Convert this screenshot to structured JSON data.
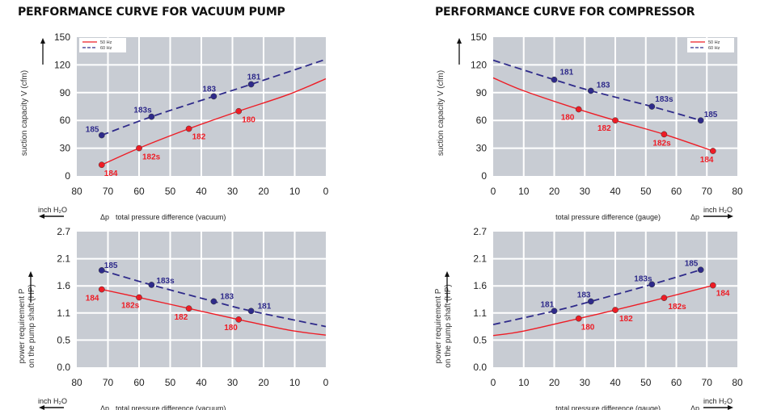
{
  "titles": [
    "PERFORMANCE CURVE FOR VACUUM PUMP",
    "PERFORMANCE CURVE FOR COMPRESSOR"
  ],
  "colors": {
    "hz50": "#ee1c25",
    "hz60": "#2e2a8a",
    "plot_bg": "#c8ccd3",
    "grid": "#ffffff"
  },
  "chart_data": [
    {
      "type": "line",
      "title": "PERFORMANCE CURVE FOR VACUUM PUMP",
      "ylabel": "suction capacity V (cfm)",
      "xlabel": "total pressure difference (vacuum)",
      "xlabel_prefix": "Δp",
      "unit": "inch H2O",
      "xlim": [
        80,
        0
      ],
      "ylim": [
        0,
        150
      ],
      "xticks": [
        "80",
        "70",
        "60",
        "50",
        "40",
        "30",
        "20",
        "10",
        "0"
      ],
      "yticks": [
        "0",
        "30",
        "60",
        "90",
        "120",
        "150"
      ],
      "grid": true,
      "legend": "top-left",
      "series": [
        {
          "name": "50 Hz",
          "style": "solid",
          "curve": [
            [
              72,
              12
            ],
            [
              60,
              30
            ],
            [
              44,
              51
            ],
            [
              28,
              70
            ],
            [
              12,
              88
            ],
            [
              0,
              105
            ]
          ],
          "markers": [
            {
              "x": 72,
              "y": 12,
              "label": "184"
            },
            {
              "x": 60,
              "y": 30,
              "label": "182s"
            },
            {
              "x": 44,
              "y": 51,
              "label": "182"
            },
            {
              "x": 28,
              "y": 70,
              "label": "180"
            }
          ]
        },
        {
          "name": "60 Hz",
          "style": "dashed",
          "curve": [
            [
              72,
              44
            ],
            [
              56,
              64
            ],
            [
              36,
              86
            ],
            [
              24,
              99
            ],
            [
              0,
              126
            ]
          ],
          "markers": [
            {
              "x": 72,
              "y": 44,
              "label": "185"
            },
            {
              "x": 56,
              "y": 64,
              "label": "183s"
            },
            {
              "x": 36,
              "y": 86,
              "label": "183"
            },
            {
              "x": 24,
              "y": 99,
              "label": "181"
            }
          ]
        }
      ]
    },
    {
      "type": "line",
      "ylabel": "power requirement P on the pump shaft (HP)",
      "ylabel_lines": [
        "power requirement P",
        "on the pump shaft (HP)"
      ],
      "xlabel": "total pressure difference (vacuum)",
      "xlabel_prefix": "Δp",
      "unit": "inch H2O",
      "xlim": [
        80,
        0
      ],
      "ylim": [
        0,
        2.7
      ],
      "xticks": [
        "80",
        "70",
        "60",
        "50",
        "40",
        "30",
        "20",
        "10",
        "0"
      ],
      "yticks": [
        "0.0",
        "0.5",
        "1.1",
        "1.6",
        "2.1",
        "2.7"
      ],
      "grid": true,
      "series": [
        {
          "name": "50 Hz",
          "style": "solid",
          "curve": [
            [
              72,
              1.55
            ],
            [
              60,
              1.39
            ],
            [
              44,
              1.17
            ],
            [
              28,
              0.95
            ],
            [
              12,
              0.74
            ],
            [
              0,
              0.64
            ]
          ],
          "markers": [
            {
              "x": 72,
              "y": 1.55,
              "label": "184"
            },
            {
              "x": 60,
              "y": 1.39,
              "label": "182s"
            },
            {
              "x": 44,
              "y": 1.17,
              "label": "182"
            },
            {
              "x": 28,
              "y": 0.95,
              "label": "180"
            }
          ]
        },
        {
          "name": "60 Hz",
          "style": "dashed",
          "curve": [
            [
              72,
              1.93
            ],
            [
              56,
              1.64
            ],
            [
              36,
              1.31
            ],
            [
              24,
              1.12
            ],
            [
              0,
              0.81
            ]
          ],
          "markers": [
            {
              "x": 72,
              "y": 1.93,
              "label": "185"
            },
            {
              "x": 56,
              "y": 1.64,
              "label": "183s"
            },
            {
              "x": 36,
              "y": 1.31,
              "label": "183"
            },
            {
              "x": 24,
              "y": 1.12,
              "label": "181"
            }
          ]
        }
      ]
    },
    {
      "type": "line",
      "title": "PERFORMANCE CURVE FOR COMPRESSOR",
      "ylabel": "suction capacity V (cfm)",
      "xlabel": "total pressure difference (gauge)",
      "xlabel_prefix": "Δp",
      "unit": "inch H2O",
      "xlim": [
        0,
        80
      ],
      "ylim": [
        0,
        150
      ],
      "xticks": [
        "0",
        "10",
        "20",
        "30",
        "40",
        "50",
        "60",
        "70",
        "80"
      ],
      "yticks": [
        "0",
        "30",
        "60",
        "90",
        "120",
        "150"
      ],
      "grid": true,
      "legend": "top-right",
      "series": [
        {
          "name": "50 Hz",
          "style": "solid",
          "curve": [
            [
              0,
              106
            ],
            [
              10,
              92
            ],
            [
              28,
              72
            ],
            [
              40,
              60
            ],
            [
              56,
              45
            ],
            [
              72,
              27
            ]
          ],
          "markers": [
            {
              "x": 28,
              "y": 72,
              "label": "180"
            },
            {
              "x": 40,
              "y": 60,
              "label": "182"
            },
            {
              "x": 56,
              "y": 45,
              "label": "182s"
            },
            {
              "x": 72,
              "y": 27,
              "label": "184"
            }
          ]
        },
        {
          "name": "60 Hz",
          "style": "dashed",
          "curve": [
            [
              0,
              125
            ],
            [
              20,
              104
            ],
            [
              32,
              92
            ],
            [
              52,
              75
            ],
            [
              68,
              60
            ]
          ],
          "markers": [
            {
              "x": 20,
              "y": 104,
              "label": "181"
            },
            {
              "x": 32,
              "y": 92,
              "label": "183"
            },
            {
              "x": 52,
              "y": 75,
              "label": "183s"
            },
            {
              "x": 68,
              "y": 60,
              "label": "185"
            }
          ]
        }
      ]
    },
    {
      "type": "line",
      "ylabel": "power requirement P on the pump shaft (HP)",
      "ylabel_lines": [
        "power requirement P",
        "on the pump shaft (HP)"
      ],
      "xlabel": "total pressure difference (gauge)",
      "xlabel_prefix": "Δp",
      "unit": "inch H2O",
      "xlim": [
        0,
        80
      ],
      "ylim": [
        0,
        2.7
      ],
      "xticks": [
        "0",
        "10",
        "20",
        "30",
        "40",
        "50",
        "60",
        "70",
        "80"
      ],
      "yticks": [
        "0.0",
        "0.5",
        "1.1",
        "1.6",
        "2.1",
        "2.7"
      ],
      "grid": true,
      "series": [
        {
          "name": "50 Hz",
          "style": "solid",
          "curve": [
            [
              0,
              0.63
            ],
            [
              10,
              0.72
            ],
            [
              28,
              0.97
            ],
            [
              40,
              1.14
            ],
            [
              56,
              1.38
            ],
            [
              72,
              1.63
            ]
          ],
          "markers": [
            {
              "x": 28,
              "y": 0.97,
              "label": "180"
            },
            {
              "x": 40,
              "y": 1.14,
              "label": "182"
            },
            {
              "x": 56,
              "y": 1.38,
              "label": "182s"
            },
            {
              "x": 72,
              "y": 1.63,
              "label": "184"
            }
          ]
        },
        {
          "name": "60 Hz",
          "style": "dashed",
          "curve": [
            [
              0,
              0.85
            ],
            [
              20,
              1.12
            ],
            [
              32,
              1.31
            ],
            [
              52,
              1.65
            ],
            [
              68,
              1.94
            ]
          ],
          "markers": [
            {
              "x": 20,
              "y": 1.12,
              "label": "181"
            },
            {
              "x": 32,
              "y": 1.31,
              "label": "183"
            },
            {
              "x": 52,
              "y": 1.65,
              "label": "183s"
            },
            {
              "x": 68,
              "y": 1.94,
              "label": "185"
            }
          ]
        }
      ]
    }
  ]
}
